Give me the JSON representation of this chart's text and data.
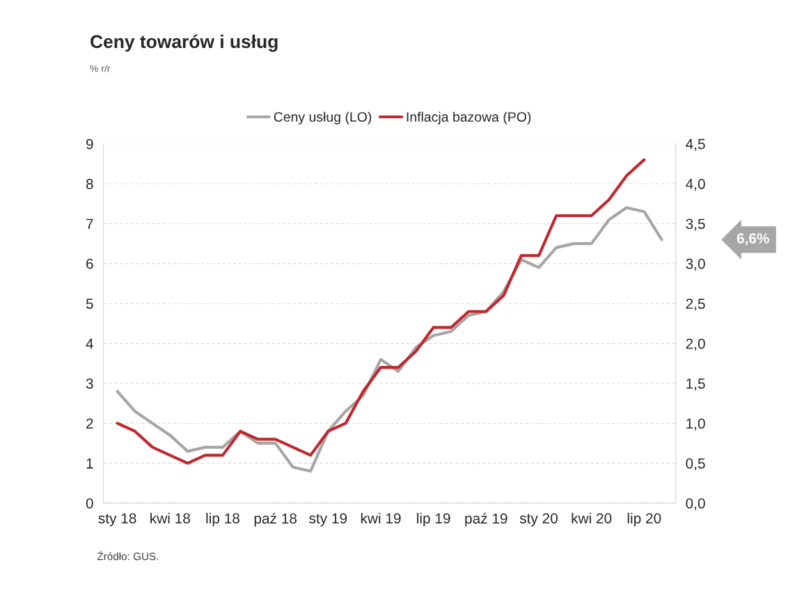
{
  "chart_data": {
    "type": "line",
    "title": "Ceny towarów i usług",
    "subtitle": "% r/r",
    "categories": [
      "sty 18",
      null,
      null,
      "kwi 18",
      null,
      null,
      "lip 18",
      null,
      null,
      "paź 18",
      null,
      null,
      "sty 19",
      null,
      null,
      "kwi 19",
      null,
      null,
      "lip 19",
      null,
      null,
      "paź 19",
      null,
      null,
      "sty 20",
      null,
      null,
      "kwi 20",
      null,
      null,
      "lip 20",
      null
    ],
    "series": [
      {
        "name": "Ceny usług (LO)",
        "color": "#a6a6a6",
        "values": [
          2.8,
          2.3,
          2.0,
          1.7,
          1.3,
          1.4,
          1.4,
          1.8,
          1.5,
          1.5,
          0.9,
          0.8,
          1.8,
          2.3,
          2.7,
          3.6,
          3.3,
          3.9,
          4.2,
          4.3,
          4.7,
          4.8,
          5.3,
          6.1,
          5.9,
          6.4,
          6.5,
          6.5,
          7.1,
          7.4,
          7.3,
          6.6
        ]
      },
      {
        "name": "Inflacja bazowa (PO)",
        "color": "#c0282d",
        "axis": "y2",
        "values": [
          1.0,
          0.9,
          0.7,
          0.6,
          0.5,
          0.6,
          0.6,
          0.9,
          0.8,
          0.8,
          0.7,
          0.6,
          0.9,
          1.0,
          1.4,
          1.7,
          1.7,
          1.9,
          2.2,
          2.2,
          2.4,
          2.4,
          2.6,
          3.1,
          3.1,
          3.6,
          3.6,
          3.6,
          3.8,
          4.1,
          4.3,
          null
        ]
      }
    ],
    "ylim": [
      0,
      9
    ],
    "yticks": [
      0,
      1,
      2,
      3,
      4,
      5,
      6,
      7,
      8,
      9
    ],
    "y2lim": [
      0,
      4.5
    ],
    "y2ticks": [
      {
        "value": 0,
        "label": "0,0"
      },
      {
        "value": 0.5,
        "label": "0,5"
      },
      {
        "value": 1,
        "label": "1,0"
      },
      {
        "value": 1.5,
        "label": "1,5"
      },
      {
        "value": 2,
        "label": "2,0"
      },
      {
        "value": 2.5,
        "label": "2,5"
      },
      {
        "value": 3,
        "label": "3,0"
      },
      {
        "value": 3.5,
        "label": "3,5"
      },
      {
        "value": 4,
        "label": "4,0"
      },
      {
        "value": 4.5,
        "label": "4,5"
      }
    ],
    "grid": "y",
    "legend": "top",
    "line_style": "solid",
    "marker": "none",
    "annotations": [
      "6,6%",
      "Źródło: GUS."
    ]
  }
}
